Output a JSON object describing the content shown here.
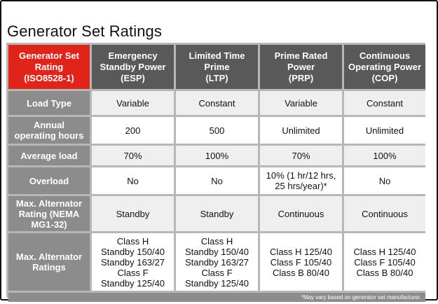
{
  "title": "Generator Set Ratings",
  "header": {
    "corner": [
      "Generator Set",
      "Rating",
      "(ISO8528-1)"
    ],
    "columns": [
      [
        "Emergency",
        "Standby Power",
        "(ESP)"
      ],
      [
        "Limited Time",
        "Prime",
        "(LTP)"
      ],
      [
        "Prime Rated",
        "Power",
        "(PRP)"
      ],
      [
        "Continuous",
        "Operating Power",
        "(COP)"
      ]
    ]
  },
  "rows": [
    {
      "label": [
        "Load Type"
      ],
      "cells": [
        [
          "Variable"
        ],
        [
          "Constant"
        ],
        [
          "Variable"
        ],
        [
          "Constant"
        ]
      ]
    },
    {
      "label": [
        "Annual",
        "operating hours"
      ],
      "cells": [
        [
          "200"
        ],
        [
          "500"
        ],
        [
          "Unlimited"
        ],
        [
          "Unlimited"
        ]
      ]
    },
    {
      "label": [
        "Average load"
      ],
      "cells": [
        [
          "70%"
        ],
        [
          "100%"
        ],
        [
          "70%"
        ],
        [
          "100%"
        ]
      ]
    },
    {
      "label": [
        "Overload"
      ],
      "cells": [
        [
          "No"
        ],
        [
          "No"
        ],
        [
          "10% (1 hr/12 hrs,",
          "25 hrs/year)*"
        ],
        [
          "No"
        ]
      ]
    },
    {
      "label": [
        "Max. Alternator",
        "Rating (NEMA",
        "MG1-32)"
      ],
      "cells": [
        [
          "Standby"
        ],
        [
          "Standby"
        ],
        [
          "Continuous"
        ],
        [
          "Continuous"
        ]
      ]
    },
    {
      "label": [
        "Max. Alternator",
        "Ratings"
      ],
      "cells": [
        [
          "Class H",
          "Standby 150/40",
          "Standby 163/27",
          "Class F",
          "Standby 125/40"
        ],
        [
          "Class H",
          "Standby 150/40",
          "Standby 163/27",
          "Class F",
          "Standby 125/40"
        ],
        [
          "Class H 125/40",
          "Class F 105/40",
          "Class B 80/40"
        ],
        [
          "Class H 125/40",
          "Class F 105/40",
          "Class B 80/40"
        ]
      ]
    }
  ],
  "footnote": "*May vary based on generator set manufacturer."
}
